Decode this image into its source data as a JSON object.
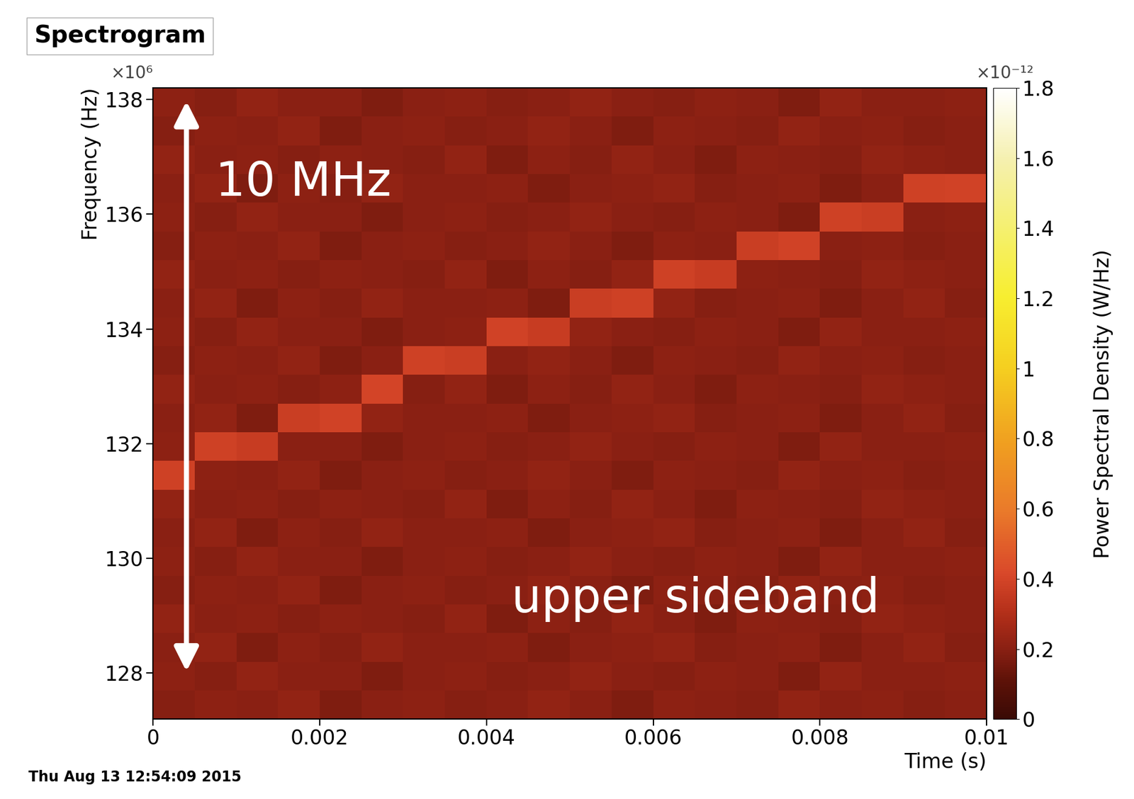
{
  "chart_data": {
    "type": "heatmap",
    "title": "Spectrogram",
    "x_label": "Time (s)",
    "y_label": "Frequency (Hz)",
    "y_axis_multiplier": "×10⁶",
    "timestamp": "Thu Aug 13 12:54:09 2015",
    "annotations": [
      "10 MHz",
      "upper sideband"
    ],
    "x": [
      0,
      0.0005,
      0.001,
      0.0015,
      0.002,
      0.0025,
      0.003,
      0.0035,
      0.004,
      0.0045,
      0.005,
      0.0055,
      0.006,
      0.0065,
      0.007,
      0.0075,
      0.008,
      0.0085,
      0.009,
      0.0095,
      0.01
    ],
    "y": [
      127.2,
      127.7,
      128.2,
      128.7,
      129.2,
      129.7,
      130.2,
      130.7,
      131.2,
      131.7,
      132.2,
      132.7,
      133.2,
      133.7,
      134.2,
      134.7,
      135.2,
      135.7,
      136.2,
      136.7,
      137.2,
      137.7,
      138.2
    ],
    "cells": [
      [
        0.19,
        0.21,
        0.2,
        0.22,
        0.18,
        0.2,
        0.21,
        0.19,
        0.2,
        0.22,
        0.2,
        0.18,
        0.21,
        0.2,
        0.19,
        0.22,
        0.2,
        0.21,
        0.19,
        0.2
      ],
      [
        0.21,
        0.19,
        0.22,
        0.2,
        0.2,
        0.18,
        0.2,
        0.21,
        0.19,
        0.2,
        0.22,
        0.2,
        0.19,
        0.21,
        0.2,
        0.18,
        0.22,
        0.2,
        0.2,
        0.21
      ],
      [
        0.2,
        0.22,
        0.18,
        0.21,
        0.19,
        0.22,
        0.2,
        0.2,
        0.21,
        0.18,
        0.2,
        0.21,
        0.22,
        0.19,
        0.2,
        0.21,
        0.18,
        0.2,
        0.22,
        0.19
      ],
      [
        0.22,
        0.2,
        0.21,
        0.19,
        0.21,
        0.2,
        0.19,
        0.22,
        0.18,
        0.21,
        0.19,
        0.22,
        0.2,
        0.18,
        0.21,
        0.2,
        0.19,
        0.22,
        0.21,
        0.2
      ],
      [
        0.19,
        0.21,
        0.2,
        0.22,
        0.18,
        0.2,
        0.21,
        0.19,
        0.2,
        0.22,
        0.2,
        0.18,
        0.21,
        0.2,
        0.19,
        0.22,
        0.2,
        0.21,
        0.19,
        0.2
      ],
      [
        0.21,
        0.19,
        0.22,
        0.2,
        0.2,
        0.18,
        0.2,
        0.21,
        0.19,
        0.2,
        0.22,
        0.2,
        0.19,
        0.21,
        0.2,
        0.18,
        0.22,
        0.2,
        0.2,
        0.21
      ],
      [
        0.2,
        0.22,
        0.18,
        0.21,
        0.19,
        0.22,
        0.2,
        0.2,
        0.21,
        0.18,
        0.2,
        0.21,
        0.22,
        0.19,
        0.2,
        0.21,
        0.18,
        0.2,
        0.22,
        0.19
      ],
      [
        0.22,
        0.2,
        0.21,
        0.19,
        0.21,
        0.2,
        0.19,
        0.22,
        0.18,
        0.21,
        0.19,
        0.22,
        0.2,
        0.18,
        0.21,
        0.2,
        0.19,
        0.22,
        0.21,
        0.2
      ],
      [
        0.38,
        0.21,
        0.2,
        0.22,
        0.18,
        0.2,
        0.21,
        0.19,
        0.2,
        0.22,
        0.2,
        0.18,
        0.21,
        0.2,
        0.19,
        0.22,
        0.2,
        0.21,
        0.19,
        0.2
      ],
      [
        0.21,
        0.38,
        0.36,
        0.2,
        0.2,
        0.18,
        0.2,
        0.21,
        0.19,
        0.2,
        0.22,
        0.2,
        0.19,
        0.21,
        0.2,
        0.18,
        0.22,
        0.2,
        0.2,
        0.21
      ],
      [
        0.2,
        0.22,
        0.18,
        0.37,
        0.39,
        0.22,
        0.2,
        0.2,
        0.21,
        0.18,
        0.2,
        0.21,
        0.22,
        0.19,
        0.2,
        0.21,
        0.18,
        0.2,
        0.22,
        0.19
      ],
      [
        0.22,
        0.2,
        0.21,
        0.19,
        0.21,
        0.4,
        0.19,
        0.22,
        0.18,
        0.21,
        0.19,
        0.22,
        0.2,
        0.18,
        0.21,
        0.2,
        0.19,
        0.22,
        0.21,
        0.2
      ],
      [
        0.19,
        0.21,
        0.2,
        0.22,
        0.18,
        0.2,
        0.38,
        0.37,
        0.2,
        0.22,
        0.2,
        0.18,
        0.21,
        0.2,
        0.19,
        0.22,
        0.2,
        0.21,
        0.19,
        0.2
      ],
      [
        0.21,
        0.19,
        0.22,
        0.2,
        0.2,
        0.18,
        0.2,
        0.21,
        0.39,
        0.36,
        0.22,
        0.2,
        0.19,
        0.21,
        0.2,
        0.18,
        0.22,
        0.2,
        0.2,
        0.21
      ],
      [
        0.2,
        0.22,
        0.18,
        0.21,
        0.19,
        0.22,
        0.2,
        0.2,
        0.21,
        0.18,
        0.37,
        0.38,
        0.22,
        0.19,
        0.2,
        0.21,
        0.18,
        0.2,
        0.22,
        0.19
      ],
      [
        0.22,
        0.2,
        0.21,
        0.19,
        0.21,
        0.2,
        0.19,
        0.22,
        0.18,
        0.21,
        0.19,
        0.22,
        0.38,
        0.36,
        0.21,
        0.2,
        0.19,
        0.22,
        0.21,
        0.2
      ],
      [
        0.19,
        0.21,
        0.2,
        0.22,
        0.18,
        0.2,
        0.21,
        0.19,
        0.2,
        0.22,
        0.2,
        0.18,
        0.21,
        0.2,
        0.37,
        0.39,
        0.2,
        0.21,
        0.19,
        0.2
      ],
      [
        0.21,
        0.19,
        0.22,
        0.2,
        0.2,
        0.18,
        0.2,
        0.21,
        0.19,
        0.2,
        0.22,
        0.2,
        0.19,
        0.21,
        0.2,
        0.18,
        0.38,
        0.37,
        0.2,
        0.21
      ],
      [
        0.2,
        0.22,
        0.18,
        0.21,
        0.19,
        0.22,
        0.2,
        0.2,
        0.21,
        0.18,
        0.2,
        0.21,
        0.22,
        0.19,
        0.2,
        0.21,
        0.18,
        0.2,
        0.38,
        0.39
      ],
      [
        0.22,
        0.2,
        0.21,
        0.19,
        0.21,
        0.2,
        0.19,
        0.22,
        0.18,
        0.21,
        0.19,
        0.22,
        0.2,
        0.18,
        0.21,
        0.2,
        0.19,
        0.22,
        0.21,
        0.2
      ],
      [
        0.19,
        0.21,
        0.2,
        0.22,
        0.18,
        0.2,
        0.21,
        0.19,
        0.2,
        0.22,
        0.2,
        0.18,
        0.21,
        0.2,
        0.19,
        0.22,
        0.2,
        0.21,
        0.19,
        0.2
      ],
      [
        0.21,
        0.19,
        0.22,
        0.2,
        0.2,
        0.18,
        0.2,
        0.21,
        0.19,
        0.2,
        0.22,
        0.2,
        0.19,
        0.21,
        0.2,
        0.18,
        0.22,
        0.2,
        0.2,
        0.21
      ]
    ],
    "xlim": [
      0,
      0.01
    ],
    "ylim": [
      127.2,
      138.2
    ],
    "xticks": [
      0,
      0.002,
      0.004,
      0.006,
      0.008,
      0.01
    ],
    "yticks": [
      128,
      130,
      132,
      134,
      136,
      138
    ],
    "colorbar": {
      "label": "Power Spectral Density (W/Hz)",
      "multiplier": "×10⁻¹²",
      "range": [
        0,
        1.8
      ],
      "ticks": [
        0,
        0.2,
        0.4,
        0.6,
        0.8,
        1,
        1.2,
        1.4,
        1.6,
        1.8
      ]
    }
  }
}
